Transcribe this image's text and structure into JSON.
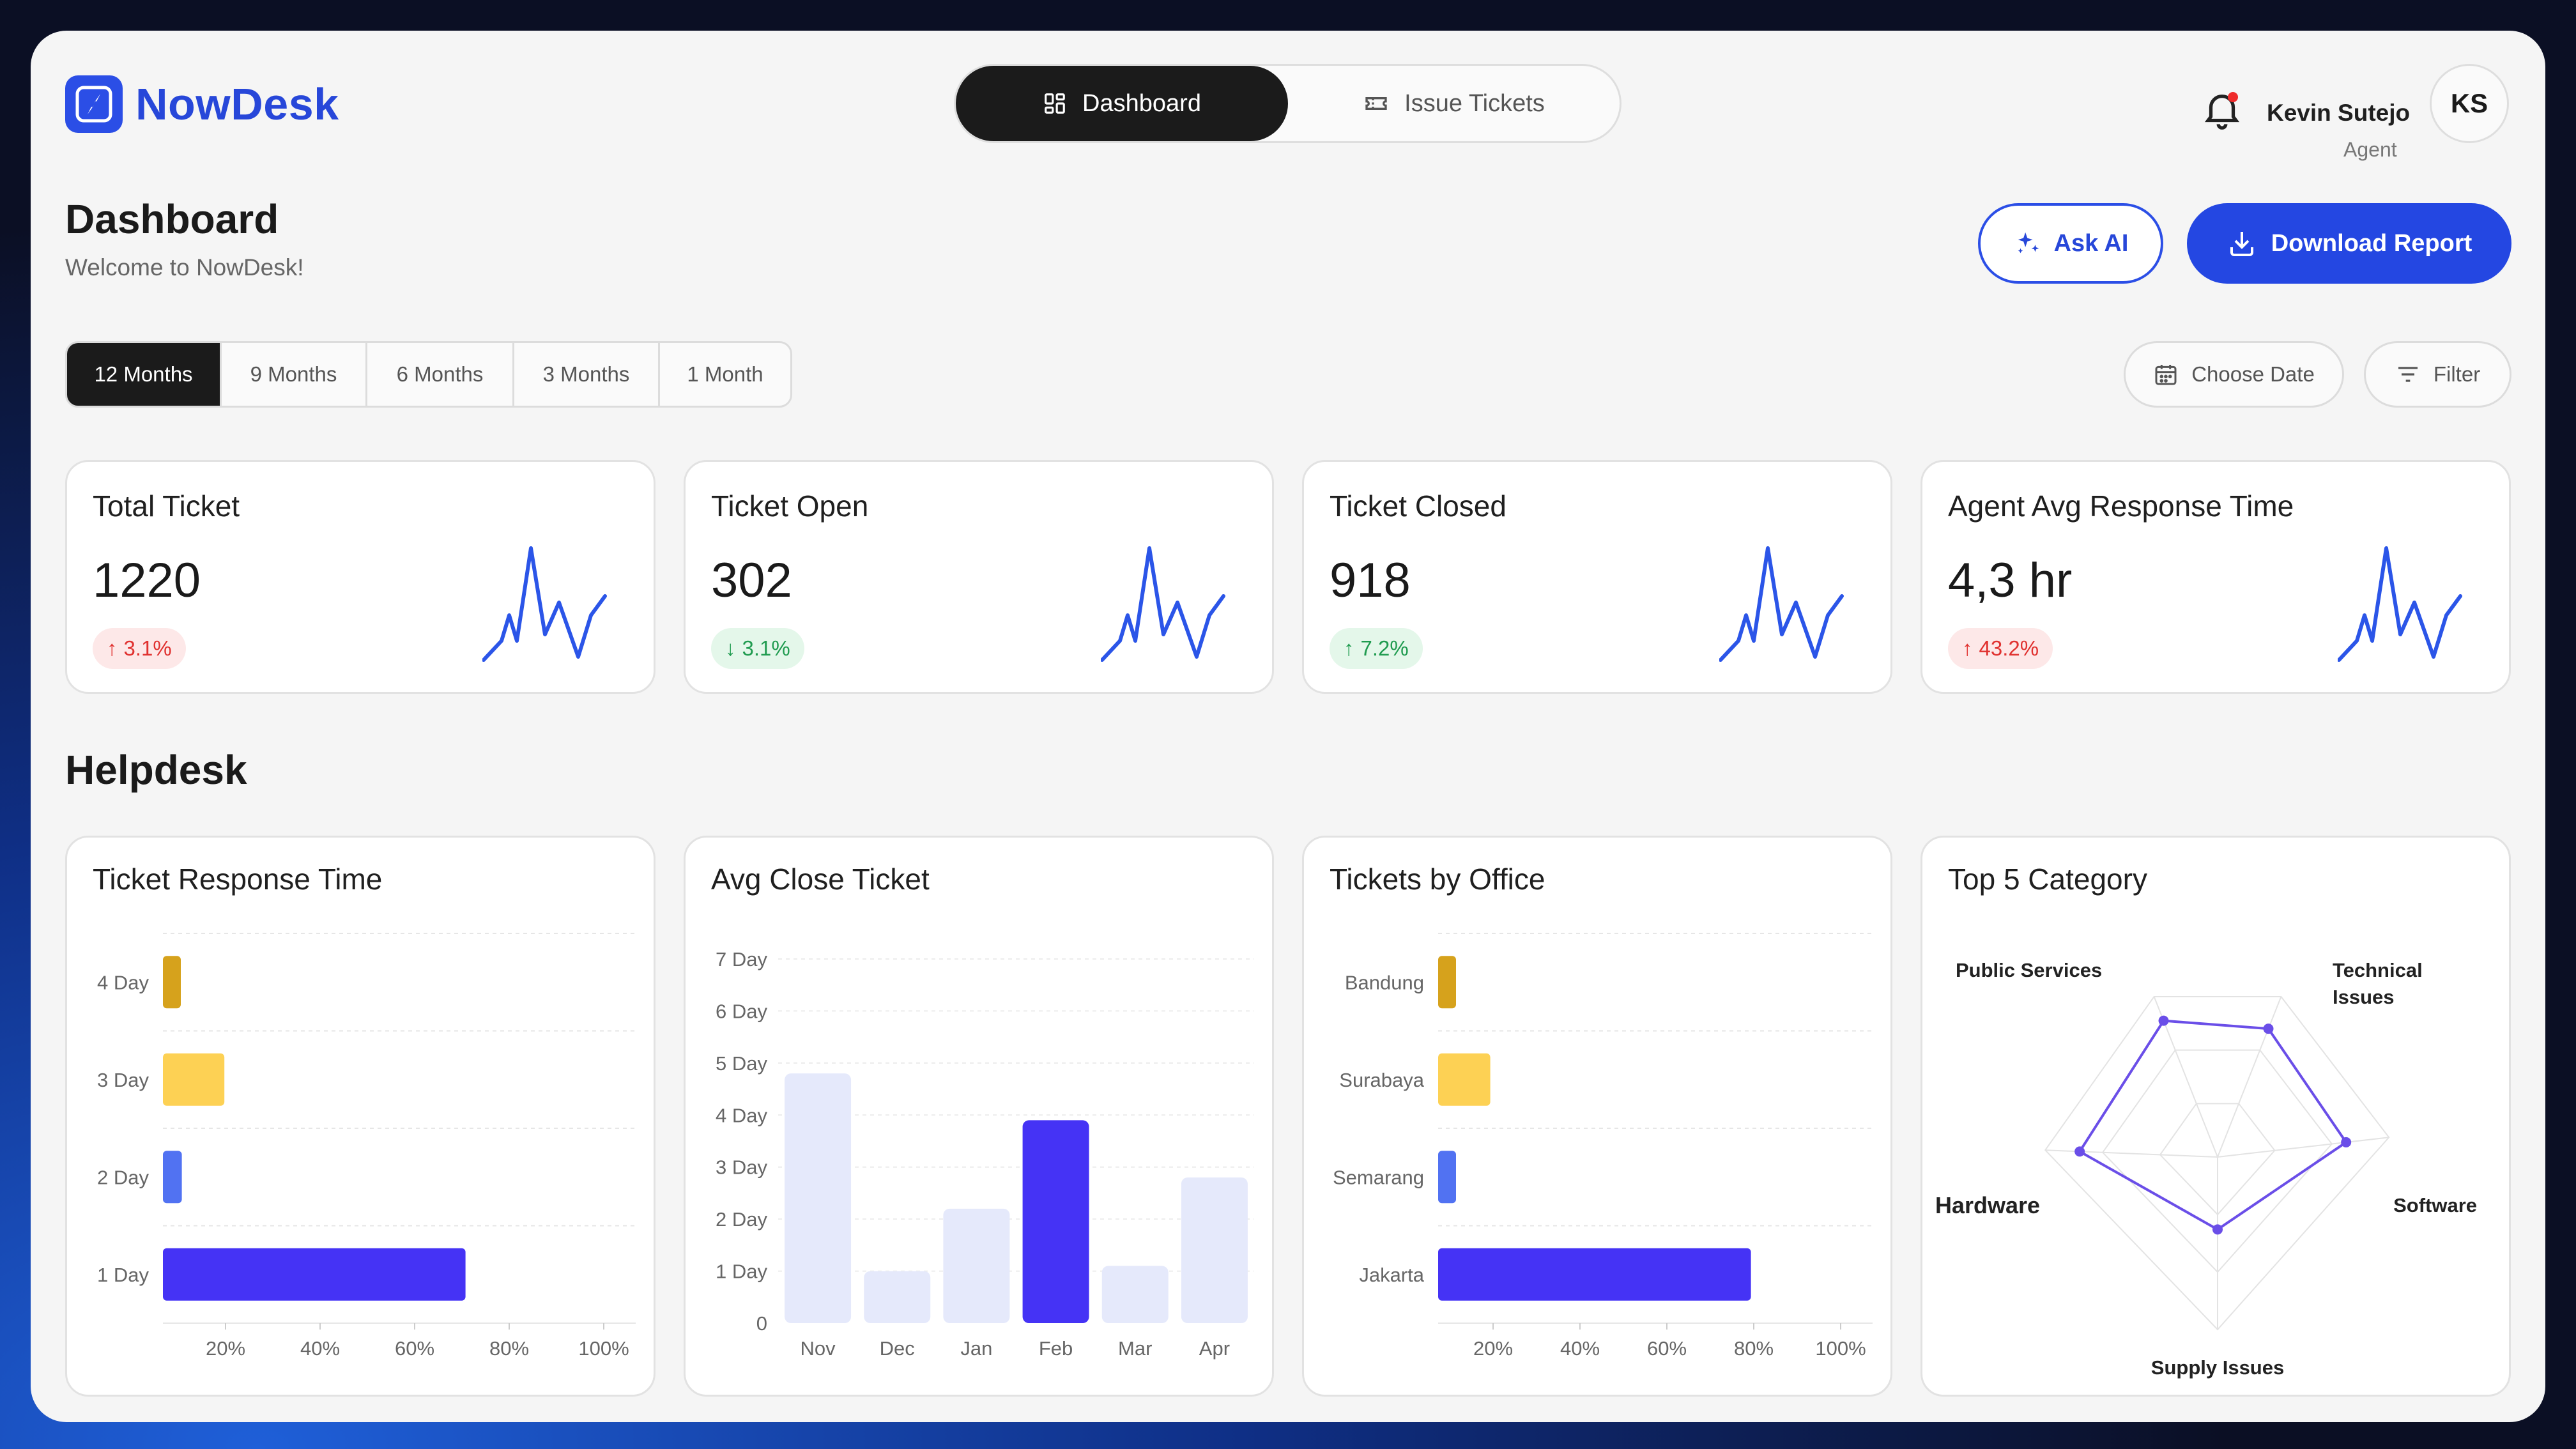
{
  "app": {
    "name": "NowDesk",
    "logo_icon": "compass-icon"
  },
  "nav": {
    "tabs": [
      {
        "label": "Dashboard",
        "icon": "grid-icon",
        "active": true
      },
      {
        "label": "Issue Tickets",
        "icon": "ticket-icon",
        "active": false
      }
    ]
  },
  "user": {
    "name": "Kevin Sutejo",
    "role": "Agent",
    "initials": "KS",
    "notification_dot_color": "#ef2b2b"
  },
  "page": {
    "title": "Dashboard",
    "subtitle": "Welcome to NowDesk!"
  },
  "actions": {
    "ask_ai": "Ask AI",
    "download": "Download Report"
  },
  "ranges": {
    "items": [
      "12 Months",
      "9 Months",
      "6 Months",
      "3 Months",
      "1 Month"
    ],
    "active_index": 0
  },
  "filters": {
    "choose_date": "Choose Date",
    "filter": "Filter"
  },
  "colors": {
    "accent": "#2447e2",
    "spark": "#2b55e8",
    "bar_primary": "#4533f5",
    "bar_yellow": "#fdd154",
    "bar_gold": "#d6a21c",
    "bar_blue": "#5172f2",
    "bar_light": "#e5e9fb",
    "radar": "#6a4ee8"
  },
  "kpis": [
    {
      "title": "Total Ticket",
      "value": "1220",
      "change": "3.1%",
      "direction": "up",
      "tone": "bad"
    },
    {
      "title": "Ticket Open",
      "value": "302",
      "change": "3.1%",
      "direction": "down",
      "tone": "good"
    },
    {
      "title": "Ticket Closed",
      "value": "918",
      "change": "7.2%",
      "direction": "up",
      "tone": "good"
    },
    {
      "title": "Agent Avg Response Time",
      "value": "4,3 hr",
      "change": "43.2%",
      "direction": "up",
      "tone": "bad"
    }
  ],
  "helpdesk": {
    "title": "Helpdesk"
  },
  "chart_data": [
    {
      "type": "bar",
      "orientation": "horizontal",
      "title": "Ticket Response Time",
      "categories": [
        "4 Day",
        "3 Day",
        "2 Day",
        "1 Day"
      ],
      "values": [
        2,
        13,
        4,
        64
      ],
      "colors": [
        "#d6a21c",
        "#fdd154",
        "#5172f2",
        "#4533f5"
      ],
      "x_ticks": [
        "20%",
        "40%",
        "60%",
        "80%",
        "100%"
      ],
      "xlim": [
        0,
        100
      ]
    },
    {
      "type": "bar",
      "title": "Avg Close Ticket",
      "categories": [
        "Nov",
        "Dec",
        "Jan",
        "Feb",
        "Mar",
        "Apr"
      ],
      "values": [
        4.8,
        1.0,
        2.2,
        3.9,
        1.1,
        2.8
      ],
      "highlight_index": 3,
      "y_ticks": [
        "0",
        "1 Day",
        "2 Day",
        "3 Day",
        "4 Day",
        "5 Day",
        "6 Day",
        "7 Day"
      ],
      "ylim": [
        0,
        7
      ]
    },
    {
      "type": "bar",
      "orientation": "horizontal",
      "title": "Tickets by Office",
      "categories": [
        "Bandung",
        "Surabaya",
        "Semarang",
        "Jakarta"
      ],
      "values": [
        2,
        12,
        4,
        72
      ],
      "colors": [
        "#d6a21c",
        "#fdd154",
        "#5172f2",
        "#4533f5"
      ],
      "x_ticks": [
        "20%",
        "40%",
        "60%",
        "80%",
        "100%"
      ],
      "xlim": [
        0,
        100
      ]
    },
    {
      "type": "radar",
      "title": "Top 5 Category",
      "axes": [
        "Public Services",
        "Technical Issues",
        "Software",
        "Supply Issues",
        "Hardware"
      ],
      "values": [
        0.85,
        0.8,
        0.75,
        0.42,
        0.8
      ],
      "max": 1
    }
  ]
}
